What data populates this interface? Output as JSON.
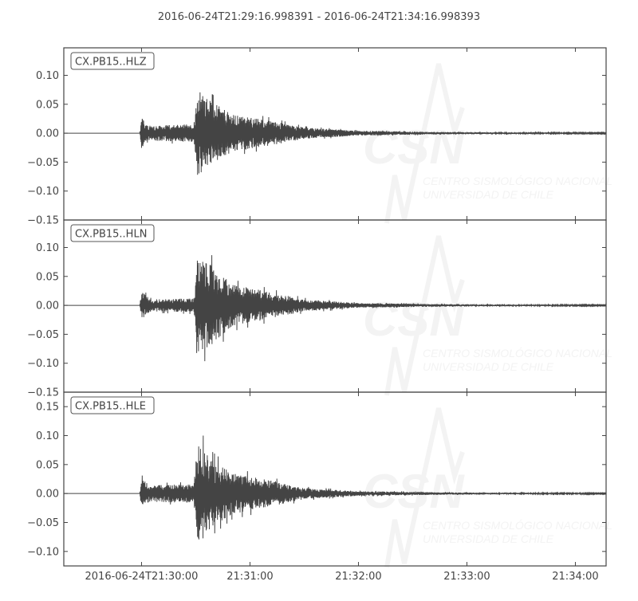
{
  "chart_data": {
    "type": "line",
    "title": "2016-06-24T21:29:16.998391  -  2016-06-24T21:34:16.998393",
    "xlim": [
      "21:29:16.998",
      "21:34:16.998"
    ],
    "x_ticks": [
      "21:30:00",
      "21:31:00",
      "21:32:00",
      "21:33:00",
      "21:34:00"
    ],
    "x_tick_labels": [
      "2016-06-24T21:30:00",
      "21:31:00",
      "21:32:00",
      "21:33:00",
      "21:34:00"
    ],
    "line_color": "#444444",
    "grid": false,
    "watermark": {
      "logo": "CSN",
      "line1": "CENTRO SISMOLÓGICO NACIONAL",
      "line2": "UNIVERSIDAD DE CHILE"
    },
    "panels": [
      {
        "label": "CX.PB15..HLZ",
        "ylim": [
          -0.15,
          0.1475
        ],
        "y_ticks": [
          0.1,
          0.05,
          0.0,
          -0.05,
          -0.1,
          -0.15
        ],
        "y_tick_labels": [
          "0.10",
          "0.05",
          "0.00",
          "−0.05",
          "−0.10",
          "−0.15"
        ],
        "envelope": [
          [
            "21:29:59",
            0
          ],
          [
            "21:30:00",
            0.033
          ],
          [
            "21:30:05",
            0.016
          ],
          [
            "21:30:29",
            0.02
          ],
          [
            "21:30:31",
            0.095
          ],
          [
            "21:30:38",
            0.07
          ],
          [
            "21:30:50",
            0.04
          ],
          [
            "21:31:10",
            0.028
          ],
          [
            "21:31:30",
            0.012
          ],
          [
            "21:32:00",
            0.005
          ],
          [
            "21:33:00",
            0.002
          ],
          [
            "21:34:17",
            0.001
          ]
        ]
      },
      {
        "label": "CX.PB15..HLN",
        "ylim": [
          -0.15,
          0.1475
        ],
        "y_ticks": [
          0.1,
          0.05,
          0.0,
          -0.05,
          -0.1,
          -0.15
        ],
        "y_tick_labels": [
          "0.10",
          "0.05",
          "0.00",
          "−0.05",
          "−0.10",
          "−0.15"
        ],
        "envelope": [
          [
            "21:29:59",
            0
          ],
          [
            "21:30:00",
            0.03
          ],
          [
            "21:30:05",
            0.013
          ],
          [
            "21:30:29",
            0.015
          ],
          [
            "21:30:31",
            0.105
          ],
          [
            "21:30:38",
            0.09
          ],
          [
            "21:30:50",
            0.045
          ],
          [
            "21:31:10",
            0.03
          ],
          [
            "21:31:30",
            0.013
          ],
          [
            "21:32:00",
            0.005
          ],
          [
            "21:33:00",
            0.002
          ],
          [
            "21:34:17",
            0.001
          ]
        ]
      },
      {
        "label": "CX.PB15..HLE",
        "ylim": [
          -0.125,
          0.175
        ],
        "y_ticks": [
          0.15,
          0.1,
          0.05,
          0.0,
          -0.05,
          -0.1
        ],
        "y_tick_labels": [
          "0.15",
          "0.10",
          "0.05",
          "0.00",
          "−0.05",
          "−0.10"
        ],
        "envelope": [
          [
            "21:29:59",
            0
          ],
          [
            "21:30:00",
            0.032
          ],
          [
            "21:30:05",
            0.018
          ],
          [
            "21:30:29",
            0.02
          ],
          [
            "21:30:31",
            0.12
          ],
          [
            "21:30:38",
            0.075
          ],
          [
            "21:30:50",
            0.045
          ],
          [
            "21:31:10",
            0.03
          ],
          [
            "21:31:30",
            0.012
          ],
          [
            "21:32:00",
            0.005
          ],
          [
            "21:33:00",
            0.002
          ],
          [
            "21:34:17",
            0.001
          ]
        ]
      }
    ]
  }
}
